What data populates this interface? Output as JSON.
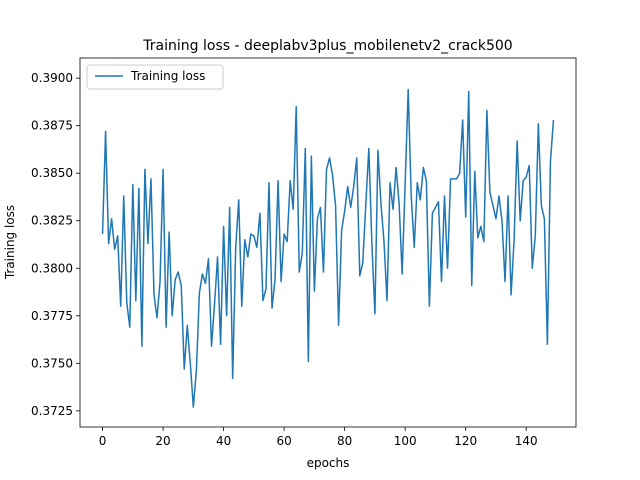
{
  "chart_data": {
    "type": "line",
    "title": "Training loss - deeplabv3plus_mobilenetv2_crack500",
    "xlabel": "epochs",
    "ylabel": "Training loss",
    "xlim": [
      -7.45,
      156.45
    ],
    "ylim": [
      0.37165,
      0.39106
    ],
    "xticks": [
      0,
      20,
      40,
      60,
      80,
      100,
      120,
      140
    ],
    "xtick_labels": [
      "0",
      "20",
      "40",
      "60",
      "80",
      "100",
      "120",
      "140"
    ],
    "yticks": [
      0.3725,
      0.375,
      0.3775,
      0.38,
      0.3825,
      0.385,
      0.3875,
      0.39
    ],
    "ytick_labels": [
      "0.3725",
      "0.3750",
      "0.3775",
      "0.3800",
      "0.3825",
      "0.3850",
      "0.3875",
      "0.3900"
    ],
    "grid": false,
    "legend_position": "top-left",
    "series": [
      {
        "name": "Training loss",
        "color": "#1f77b4",
        "x": [
          0,
          1,
          2,
          3,
          4,
          5,
          6,
          7,
          8,
          9,
          10,
          11,
          12,
          13,
          14,
          15,
          16,
          17,
          18,
          19,
          20,
          21,
          22,
          23,
          24,
          25,
          26,
          27,
          28,
          29,
          30,
          31,
          32,
          33,
          34,
          35,
          36,
          37,
          38,
          39,
          40,
          41,
          42,
          43,
          44,
          45,
          46,
          47,
          48,
          49,
          50,
          51,
          52,
          53,
          54,
          55,
          56,
          57,
          58,
          59,
          60,
          61,
          62,
          63,
          64,
          65,
          66,
          67,
          68,
          69,
          70,
          71,
          72,
          73,
          74,
          75,
          76,
          77,
          78,
          79,
          80,
          81,
          82,
          83,
          84,
          85,
          86,
          87,
          88,
          89,
          90,
          91,
          92,
          93,
          94,
          95,
          96,
          97,
          98,
          99,
          100,
          101,
          102,
          103,
          104,
          105,
          106,
          107,
          108,
          109,
          110,
          111,
          112,
          113,
          114,
          115,
          116,
          117,
          118,
          119,
          120,
          121,
          122,
          123,
          124,
          125,
          126,
          127,
          128,
          129,
          130,
          131,
          132,
          133,
          134,
          135,
          136,
          137,
          138,
          139,
          140,
          141,
          142,
          143,
          144,
          145,
          146,
          147,
          148,
          149
        ],
        "values": [
          0.3818,
          0.3872,
          0.3813,
          0.3826,
          0.381,
          0.3817,
          0.378,
          0.3838,
          0.3782,
          0.3769,
          0.3844,
          0.3783,
          0.3842,
          0.3759,
          0.3852,
          0.3813,
          0.3847,
          0.3786,
          0.3774,
          0.3793,
          0.3852,
          0.3769,
          0.3819,
          0.3775,
          0.3794,
          0.3798,
          0.3791,
          0.3747,
          0.377,
          0.375,
          0.3727,
          0.3746,
          0.3787,
          0.3797,
          0.3792,
          0.3805,
          0.3759,
          0.3781,
          0.3806,
          0.376,
          0.3822,
          0.3775,
          0.3832,
          0.3742,
          0.3811,
          0.3836,
          0.378,
          0.3815,
          0.3806,
          0.3818,
          0.3817,
          0.3811,
          0.3829,
          0.3783,
          0.3789,
          0.3845,
          0.3779,
          0.3794,
          0.3846,
          0.3793,
          0.3818,
          0.3814,
          0.3846,
          0.3831,
          0.3885,
          0.3798,
          0.3808,
          0.3863,
          0.3751,
          0.3859,
          0.3788,
          0.3826,
          0.3832,
          0.3798,
          0.3852,
          0.3858,
          0.3849,
          0.3833,
          0.377,
          0.382,
          0.383,
          0.3843,
          0.3832,
          0.3843,
          0.3858,
          0.3796,
          0.3803,
          0.3834,
          0.3863,
          0.3813,
          0.3776,
          0.3862,
          0.3834,
          0.3814,
          0.3783,
          0.3845,
          0.3831,
          0.3853,
          0.3834,
          0.3797,
          0.3845,
          0.3894,
          0.3838,
          0.3811,
          0.3845,
          0.3836,
          0.3853,
          0.3846,
          0.378,
          0.3829,
          0.3832,
          0.3835,
          0.3793,
          0.3838,
          0.38,
          0.3847,
          0.3847,
          0.3847,
          0.385,
          0.3878,
          0.3827,
          0.3893,
          0.3791,
          0.3851,
          0.3816,
          0.3822,
          0.3814,
          0.3883,
          0.384,
          0.3833,
          0.3826,
          0.3838,
          0.3825,
          0.3793,
          0.3838,
          0.3786,
          0.3815,
          0.3867,
          0.3825,
          0.3846,
          0.3848,
          0.3854,
          0.38,
          0.3817,
          0.3876,
          0.3833,
          0.3826,
          0.376,
          0.3856,
          0.3878
        ]
      }
    ]
  }
}
